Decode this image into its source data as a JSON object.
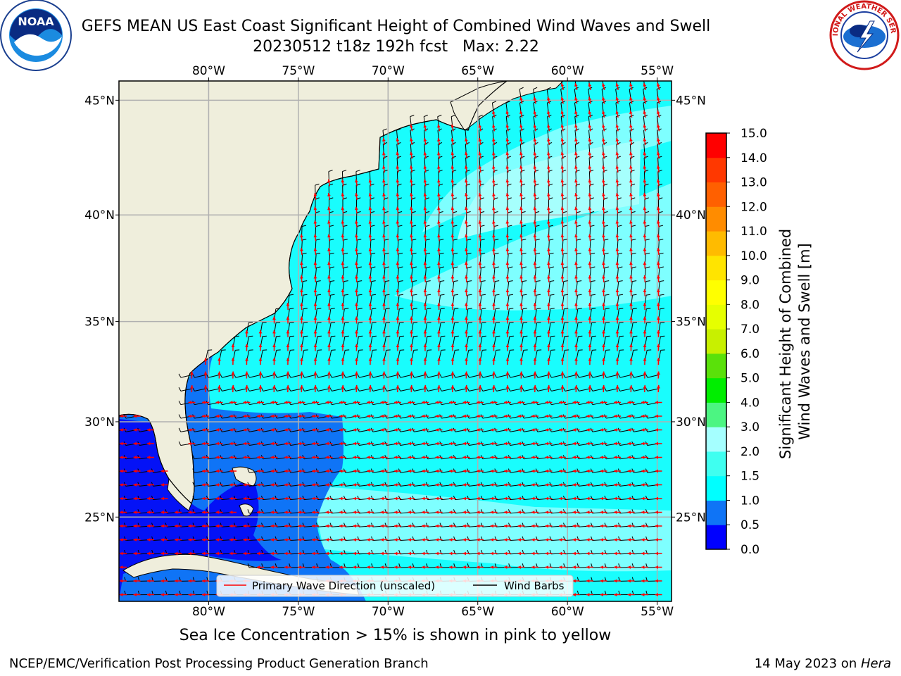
{
  "title": {
    "line1": "GEFS MEAN US East Coast Significant Height of Combined Wind Waves and Swell",
    "line2": "20230512 t18z 192h fcst   Max: 2.22"
  },
  "subtitle": "Sea Ice Concentration > 15% is shown in pink to yellow",
  "footer": {
    "left": "NCEP/EMC/Verification Post Processing Product Generation Branch",
    "date": "14 May 2023 on ",
    "machine": "Hera"
  },
  "logos": {
    "left": {
      "name": "noaa-logo",
      "text": "NOAA"
    },
    "right": {
      "name": "nws-logo",
      "text": "NATIONAL WEATHER SERVICE"
    }
  },
  "map": {
    "lon_labels": [
      "80°W",
      "75°W",
      "70°W",
      "65°W",
      "60°W",
      "55°W"
    ],
    "lat_labels": [
      "45°N",
      "40°N",
      "35°N",
      "30°N",
      "25°N"
    ],
    "extent": {
      "lon_min": -85,
      "lon_max": -54.2,
      "lat_min": 20.4,
      "lat_max": 45.8
    },
    "colors": {
      "land": "#efeedc",
      "ocean_main": "#19fdfd",
      "ocean_light": "#7effff",
      "ocean_lighter": "#a6fffd",
      "ocean_mid_blue": "#0f74f6",
      "ocean_deep_blue": "#0412f6",
      "grid": "#b0b0b0",
      "wave_arrow": "#ff0000",
      "wind_barb": "#000000"
    }
  },
  "legend": {
    "wave": "Primary Wave Direction (unscaled)",
    "wind": "Wind Barbs"
  },
  "colorbar": {
    "label_line1": "Significant Height of Combined",
    "label_line2": "Wind Waves and Swell [m]",
    "ticks": [
      "0.0",
      "0.5",
      "1.0",
      "1.5",
      "2.0",
      "3.0",
      "4.0",
      "5.0",
      "6.0",
      "7.0",
      "8.0",
      "9.0",
      "10.0",
      "11.0",
      "12.0",
      "13.0",
      "14.0",
      "15.0"
    ],
    "colors": [
      "#0000ff",
      "#0f74f6",
      "#00ffff",
      "#3ffff0",
      "#a5ffff",
      "#4cf582",
      "#00ee00",
      "#5ae10a",
      "#c8f000",
      "#e6ff00",
      "#ffff00",
      "#ffe400",
      "#ffbb00",
      "#ff8c00",
      "#ff6000",
      "#ff3800",
      "#ff0000"
    ]
  }
}
